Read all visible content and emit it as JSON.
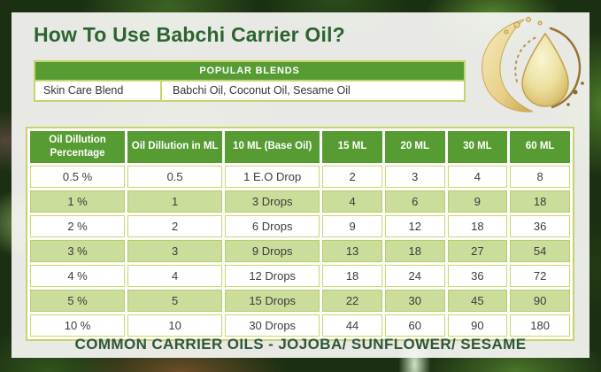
{
  "header": {
    "title": "How To Use Babchi Carrier Oil?"
  },
  "popular_blends": {
    "header": "POPULAR BLENDS",
    "rows": [
      {
        "name": "Skin Care Blend",
        "oils": "Babchi Oil, Coconut Oil, Sesame Oil"
      }
    ]
  },
  "dilution_table": {
    "columns": [
      "Oil Dillution Percentage",
      "Oil Dillution in ML",
      "10 ML (Base Oil)",
      "15 ML",
      "20 ML",
      "30 ML",
      "60 ML"
    ],
    "rows": [
      [
        "0.5 %",
        "0.5",
        "1 E.O Drop",
        "2",
        "3",
        "4",
        "8"
      ],
      [
        "1 %",
        "1",
        "3 Drops",
        "4",
        "6",
        "9",
        "18"
      ],
      [
        "2 %",
        "2",
        "6 Drops",
        "9",
        "12",
        "18",
        "36"
      ],
      [
        "3 %",
        "3",
        "9 Drops",
        "13",
        "18",
        "27",
        "54"
      ],
      [
        "4 %",
        "4",
        "12 Drops",
        "18",
        "24",
        "36",
        "72"
      ],
      [
        "5 %",
        "5",
        "15 Drops",
        "22",
        "30",
        "45",
        "90"
      ],
      [
        "10 %",
        "10",
        "30 Drops",
        "44",
        "60",
        "90",
        "180"
      ]
    ]
  },
  "footer": {
    "text": "COMMON CARRIER OILS - JOJOBA/ SUNFLOWER/ SESAME"
  },
  "icons": {
    "oil_drop": "oil-drop-illustration"
  },
  "colors": {
    "accent_green": "#579b33",
    "border_yellow_green": "#c9d36d",
    "row_light_green": "#cbdd9b",
    "title_green": "#2c6431",
    "footer_green": "#2f5639"
  }
}
